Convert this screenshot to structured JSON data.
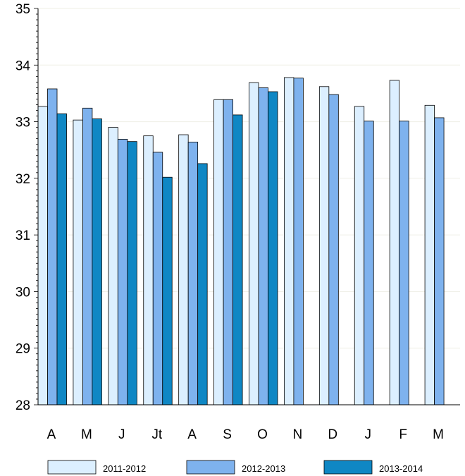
{
  "chart_data": {
    "type": "bar",
    "title": "",
    "xlabel": "",
    "ylabel": "",
    "categories": [
      "A",
      "M",
      "J",
      "Jt",
      "A",
      "S",
      "O",
      "N",
      "D",
      "J",
      "F",
      "M"
    ],
    "ylim": [
      28,
      35
    ],
    "yticks": [
      "28",
      "29",
      "30",
      "31",
      "32",
      "33",
      "34",
      "35"
    ],
    "grid": "horizontal",
    "legend_position": "bottom",
    "series": [
      {
        "name": "2011-2012",
        "color": "#dcefff",
        "values": [
          33.27,
          33.03,
          32.9,
          32.75,
          32.77,
          33.39,
          33.69,
          33.78,
          33.62,
          33.27,
          33.73,
          33.29
        ]
      },
      {
        "name": "2012-2013",
        "color": "#7eb2ee",
        "values": [
          33.58,
          33.24,
          32.69,
          32.46,
          32.64,
          33.39,
          33.6,
          33.77,
          33.48,
          33.01,
          33.01,
          33.07
        ]
      },
      {
        "name": "2013-2014",
        "color": "#0f87c4",
        "values": [
          33.14,
          33.05,
          32.65,
          32.02,
          32.26,
          33.12,
          33.53,
          null,
          null,
          null,
          null,
          null
        ]
      }
    ]
  }
}
